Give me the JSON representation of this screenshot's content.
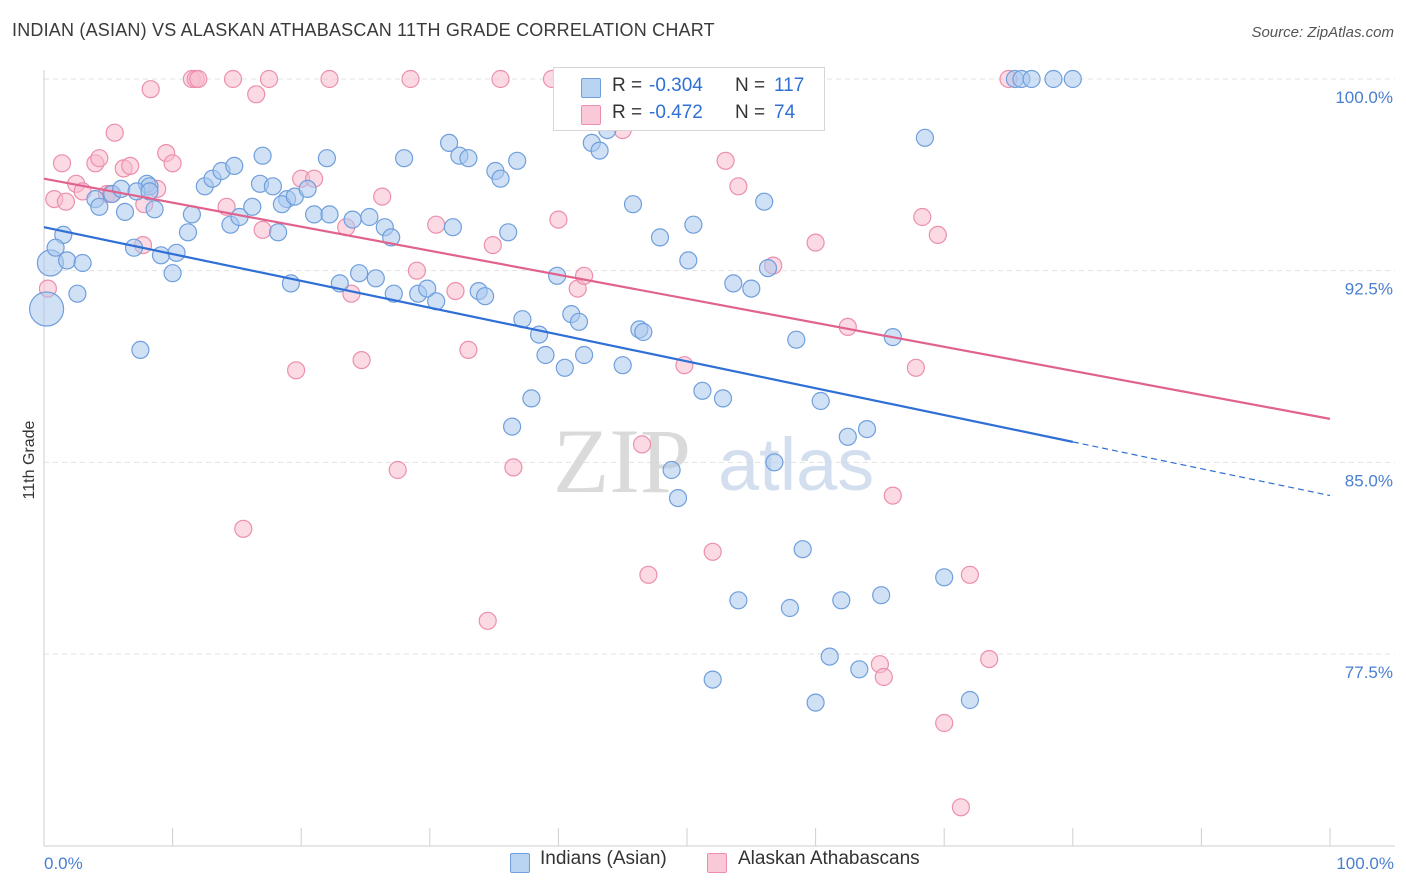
{
  "header": {
    "title": "INDIAN (ASIAN) VS ALASKAN ATHABASCAN 11TH GRADE CORRELATION CHART",
    "source": "Source: ZipAtlas.com"
  },
  "watermark": {
    "zip": "ZIP",
    "atlas": "atlas"
  },
  "legend": {
    "rows": [
      {
        "r_label": "R =",
        "r_value": "-0.304",
        "n_label": "N =",
        "n_value": "117"
      },
      {
        "r_label": "R =",
        "r_value": "-0.472",
        "n_label": "N =",
        "n_value": "74"
      }
    ]
  },
  "bottom_legend": {
    "items": [
      "Indians (Asian)",
      "Alaskan Athabascans"
    ]
  },
  "colors": {
    "blue_fill": "#a9c8ef",
    "blue_stroke": "#6f9fdc",
    "blue_line": "#2f6fd6",
    "pink_fill": "#f7bccd",
    "pink_stroke": "#ec8fac",
    "pink_line": "#e0638e",
    "grid": "#e3e3e3",
    "tick_label": "#4a7fd0"
  },
  "chart_data": {
    "type": "scatter",
    "title": "INDIAN (ASIAN) VS ALASKAN ATHABASCAN 11TH GRADE CORRELATION CHART",
    "xlabel": "",
    "ylabel": "11th Grade",
    "xlim": [
      0,
      100
    ],
    "ylim": [
      70.8,
      100.8
    ],
    "x_tick_labels": [
      "0.0%",
      "100.0%"
    ],
    "y_ticks": [
      100.0,
      92.5,
      85.0,
      77.5
    ],
    "y_tick_labels": [
      "100.0%",
      "92.5%",
      "85.0%",
      "77.5%"
    ],
    "grid": true,
    "series": [
      {
        "name": "Indians (Asian)",
        "color": "#a9c8ef",
        "trend": {
          "x": [
            0,
            80
          ],
          "y": [
            94.2,
            85.8
          ],
          "dashed_to": [
            100,
            83.7
          ]
        },
        "points": [
          [
            0.2,
            91.0
          ],
          [
            0.5,
            92.8
          ],
          [
            1.5,
            93.9
          ],
          [
            2.6,
            91.6
          ],
          [
            4.0,
            95.3
          ],
          [
            4.3,
            95.0
          ],
          [
            5.3,
            95.5
          ],
          [
            6.0,
            95.7
          ],
          [
            6.3,
            94.8
          ],
          [
            7.0,
            93.4
          ],
          [
            8.0,
            95.9
          ],
          [
            8.2,
            95.8
          ],
          [
            1.8,
            92.9
          ],
          [
            7.2,
            95.6
          ],
          [
            9.1,
            93.1
          ],
          [
            10.3,
            93.2
          ],
          [
            10.0,
            92.4
          ],
          [
            7.5,
            89.4
          ],
          [
            8.2,
            95.6
          ],
          [
            8.6,
            94.9
          ],
          [
            11.2,
            94.0
          ],
          [
            12.5,
            95.8
          ],
          [
            11.5,
            94.7
          ],
          [
            13.1,
            96.1
          ],
          [
            13.8,
            96.4
          ],
          [
            14.5,
            94.3
          ],
          [
            14.8,
            96.6
          ],
          [
            15.2,
            94.6
          ],
          [
            16.2,
            95.0
          ],
          [
            17.0,
            97.0
          ],
          [
            16.8,
            95.9
          ],
          [
            17.8,
            95.8
          ],
          [
            18.9,
            95.3
          ],
          [
            19.2,
            92.0
          ],
          [
            18.2,
            94.0
          ],
          [
            18.5,
            95.1
          ],
          [
            19.5,
            95.4
          ],
          [
            20.5,
            95.7
          ],
          [
            21.0,
            94.7
          ],
          [
            22.0,
            96.9
          ],
          [
            22.2,
            94.7
          ],
          [
            23.0,
            92.0
          ],
          [
            24.5,
            92.4
          ],
          [
            24.0,
            94.5
          ],
          [
            25.3,
            94.6
          ],
          [
            25.8,
            92.2
          ],
          [
            26.5,
            94.2
          ],
          [
            27.0,
            93.8
          ],
          [
            27.2,
            91.6
          ],
          [
            28.0,
            96.9
          ],
          [
            29.1,
            91.6
          ],
          [
            29.8,
            91.8
          ],
          [
            30.5,
            91.3
          ],
          [
            31.5,
            97.5
          ],
          [
            31.8,
            94.2
          ],
          [
            32.3,
            97.0
          ],
          [
            33.0,
            96.9
          ],
          [
            33.8,
            91.7
          ],
          [
            34.3,
            91.5
          ],
          [
            35.1,
            96.4
          ],
          [
            35.5,
            96.1
          ],
          [
            36.1,
            94.0
          ],
          [
            36.4,
            86.4
          ],
          [
            36.8,
            96.8
          ],
          [
            37.2,
            90.6
          ],
          [
            37.9,
            87.5
          ],
          [
            38.5,
            90.0
          ],
          [
            39.0,
            89.2
          ],
          [
            39.9,
            92.3
          ],
          [
            40.5,
            88.7
          ],
          [
            41.0,
            90.8
          ],
          [
            41.6,
            90.5
          ],
          [
            42.0,
            89.2
          ],
          [
            42.6,
            97.5
          ],
          [
            43.2,
            97.2
          ],
          [
            43.8,
            98.0
          ],
          [
            44.6,
            100.0
          ],
          [
            45.0,
            88.8
          ],
          [
            45.8,
            95.1
          ],
          [
            46.3,
            90.2
          ],
          [
            46.6,
            90.1
          ],
          [
            47.9,
            93.8
          ],
          [
            48.8,
            84.7
          ],
          [
            49.3,
            83.6
          ],
          [
            50.1,
            92.9
          ],
          [
            50.5,
            94.3
          ],
          [
            51.2,
            87.8
          ],
          [
            52.0,
            76.5
          ],
          [
            52.8,
            87.5
          ],
          [
            53.6,
            92.0
          ],
          [
            54.0,
            79.6
          ],
          [
            55.0,
            91.8
          ],
          [
            56.0,
            95.2
          ],
          [
            56.3,
            92.6
          ],
          [
            56.8,
            85.0
          ],
          [
            58.0,
            79.3
          ],
          [
            58.5,
            89.8
          ],
          [
            59.0,
            81.6
          ],
          [
            60.0,
            75.6
          ],
          [
            60.4,
            87.4
          ],
          [
            61.1,
            77.4
          ],
          [
            62.0,
            79.6
          ],
          [
            62.5,
            86.0
          ],
          [
            63.4,
            76.9
          ],
          [
            64.0,
            86.3
          ],
          [
            65.1,
            79.8
          ],
          [
            66.0,
            89.9
          ],
          [
            68.5,
            97.7
          ],
          [
            70.0,
            80.5
          ],
          [
            72.0,
            75.7
          ],
          [
            75.5,
            100.0
          ],
          [
            76.0,
            100.0
          ],
          [
            76.8,
            100.0
          ],
          [
            78.5,
            100.0
          ],
          [
            80.0,
            100.0
          ],
          [
            0.9,
            93.4
          ],
          [
            3.0,
            92.8
          ]
        ]
      },
      {
        "name": "Alaskan Athabascans",
        "color": "#f7bccd",
        "trend": {
          "x": [
            0,
            100
          ],
          "y": [
            96.1,
            86.7
          ]
        },
        "points": [
          [
            0.3,
            91.8
          ],
          [
            0.8,
            95.3
          ],
          [
            1.4,
            96.7
          ],
          [
            1.7,
            95.2
          ],
          [
            2.5,
            95.9
          ],
          [
            3.0,
            95.6
          ],
          [
            4.0,
            96.7
          ],
          [
            4.3,
            96.9
          ],
          [
            4.9,
            95.5
          ],
          [
            5.2,
            95.5
          ],
          [
            5.5,
            97.9
          ],
          [
            6.2,
            96.5
          ],
          [
            6.7,
            96.6
          ],
          [
            7.8,
            95.1
          ],
          [
            7.7,
            93.5
          ],
          [
            8.3,
            99.6
          ],
          [
            8.8,
            95.7
          ],
          [
            9.5,
            97.1
          ],
          [
            10.0,
            96.7
          ],
          [
            11.5,
            100.0
          ],
          [
            11.8,
            100.0
          ],
          [
            12.0,
            100.0
          ],
          [
            14.2,
            95.0
          ],
          [
            14.7,
            100.0
          ],
          [
            16.5,
            99.4
          ],
          [
            17.0,
            94.1
          ],
          [
            17.5,
            100.0
          ],
          [
            15.5,
            82.4
          ],
          [
            19.6,
            88.6
          ],
          [
            20.0,
            96.1
          ],
          [
            21.0,
            96.1
          ],
          [
            22.2,
            100.0
          ],
          [
            23.5,
            94.2
          ],
          [
            23.9,
            91.6
          ],
          [
            24.7,
            89.0
          ],
          [
            26.3,
            95.4
          ],
          [
            27.5,
            84.7
          ],
          [
            28.5,
            100.0
          ],
          [
            29.0,
            92.5
          ],
          [
            30.5,
            94.3
          ],
          [
            32.0,
            91.7
          ],
          [
            33.0,
            89.4
          ],
          [
            34.5,
            78.8
          ],
          [
            34.9,
            93.5
          ],
          [
            35.5,
            100.0
          ],
          [
            36.5,
            84.8
          ],
          [
            39.5,
            100.0
          ],
          [
            40.0,
            94.5
          ],
          [
            41.5,
            91.8
          ],
          [
            42.0,
            92.3
          ],
          [
            45.0,
            98.0
          ],
          [
            46.5,
            85.7
          ],
          [
            47.0,
            80.6
          ],
          [
            47.5,
            100.0
          ],
          [
            48.7,
            100.0
          ],
          [
            49.8,
            88.8
          ],
          [
            52.0,
            81.5
          ],
          [
            53.0,
            96.8
          ],
          [
            54.0,
            95.8
          ],
          [
            56.7,
            92.7
          ],
          [
            59.0,
            100.0
          ],
          [
            60.0,
            93.6
          ],
          [
            62.5,
            90.3
          ],
          [
            65.0,
            77.1
          ],
          [
            65.3,
            76.6
          ],
          [
            66.0,
            83.7
          ],
          [
            67.8,
            88.7
          ],
          [
            68.3,
            94.6
          ],
          [
            69.5,
            93.9
          ],
          [
            70.0,
            74.8
          ],
          [
            71.3,
            71.5
          ],
          [
            72.0,
            80.6
          ],
          [
            73.5,
            77.3
          ],
          [
            75.0,
            100.0
          ]
        ]
      }
    ]
  }
}
